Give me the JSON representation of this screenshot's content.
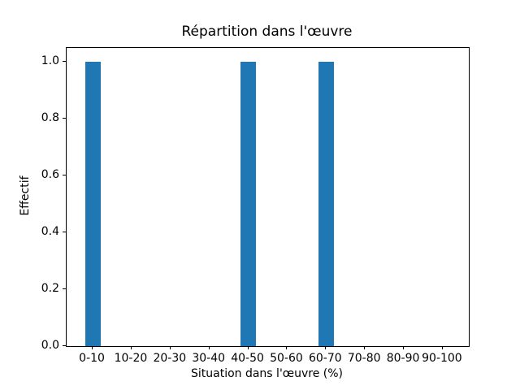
{
  "chart_data": {
    "type": "bar",
    "title": "Répartition dans l'œuvre",
    "xlabel": "Situation dans l'œuvre (%)",
    "ylabel": "Effectif",
    "categories": [
      "0-10",
      "10-20",
      "20-30",
      "30-40",
      "40-50",
      "50-60",
      "60-70",
      "70-80",
      "80-90",
      "90-100"
    ],
    "values": [
      1,
      0,
      0,
      0,
      1,
      0,
      1,
      0,
      0,
      0
    ],
    "y_tick_labels": [
      "0.0",
      "0.2",
      "0.4",
      "0.6",
      "0.8",
      "1.0"
    ],
    "ylim": [
      0,
      1.05
    ],
    "bar_color": "#1f77b4",
    "grid": false,
    "legend_position": "none"
  }
}
